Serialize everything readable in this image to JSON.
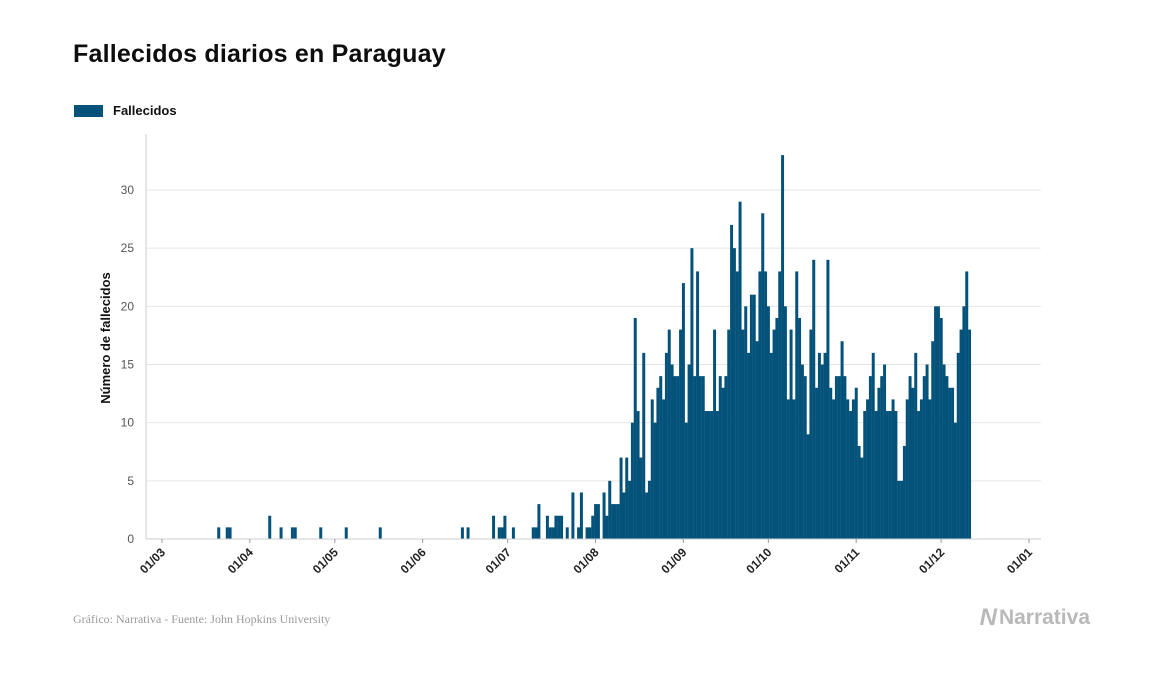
{
  "header": {
    "title": "Fallecidos diarios en Paraguay"
  },
  "footer": {
    "source": "Gráfico: Narrativa - Fuente: John Hopkins University",
    "brand": "Narrativa",
    "brand_mark": "N"
  },
  "colors": {
    "bar": "#04527a",
    "grid": "#e6e6e6",
    "axis": "#cccccc"
  },
  "chart_data": {
    "type": "bar",
    "title": "Fallecidos diarios en Paraguay",
    "ylabel": "Número de fallecidos",
    "xlabel": "",
    "ylim": [
      0,
      35
    ],
    "yticks": [
      0,
      5,
      10,
      15,
      20,
      25,
      30
    ],
    "xticks": [
      "01/03",
      "01/04",
      "01/05",
      "01/06",
      "01/07",
      "01/08",
      "01/09",
      "01/10",
      "01/11",
      "01/12",
      "01/01"
    ],
    "grid": true,
    "legend": "top-left",
    "series": [
      {
        "name": "Fallecidos",
        "start_date": "2020-03-07",
        "values": [
          0,
          0,
          0,
          0,
          0,
          0,
          0,
          0,
          0,
          0,
          0,
          0,
          0,
          0,
          1,
          0,
          0,
          1,
          1,
          0,
          0,
          0,
          0,
          0,
          0,
          0,
          0,
          0,
          0,
          0,
          0,
          0,
          2,
          0,
          0,
          0,
          1,
          0,
          0,
          0,
          1,
          1,
          0,
          0,
          0,
          0,
          0,
          0,
          0,
          0,
          1,
          0,
          0,
          0,
          0,
          0,
          0,
          0,
          0,
          1,
          0,
          0,
          0,
          0,
          0,
          0,
          0,
          0,
          0,
          0,
          0,
          1,
          0,
          0,
          0,
          0,
          0,
          0,
          0,
          0,
          0,
          0,
          0,
          0,
          0,
          0,
          0,
          0,
          0,
          0,
          0,
          0,
          0,
          0,
          0,
          0,
          0,
          0,
          0,
          0,
          1,
          0,
          1,
          0,
          0,
          0,
          0,
          0,
          0,
          0,
          0,
          2,
          0,
          1,
          1,
          2,
          0,
          0,
          1,
          0,
          0,
          0,
          0,
          0,
          0,
          1,
          1,
          3,
          0,
          0,
          2,
          1,
          1,
          2,
          2,
          2,
          0,
          1,
          0,
          4,
          0,
          1,
          4,
          0,
          1,
          1,
          2,
          3,
          3,
          0,
          4,
          2,
          5,
          3,
          3,
          3,
          7,
          4,
          7,
          5,
          10,
          19,
          11,
          7,
          16,
          4,
          5,
          12,
          10,
          13,
          14,
          12,
          16,
          18,
          15,
          14,
          14,
          18,
          22,
          10,
          15,
          25,
          14,
          23,
          14,
          14,
          11,
          11,
          11,
          18,
          11,
          14,
          13,
          14,
          18,
          27,
          25,
          23,
          29,
          18,
          20,
          16,
          21,
          21,
          17,
          23,
          28,
          23,
          20,
          16,
          18,
          19,
          23,
          33,
          20,
          12,
          18,
          12,
          23,
          19,
          15,
          14,
          9,
          18,
          24,
          13,
          16,
          15,
          16,
          24,
          13,
          12,
          14,
          14,
          17,
          14,
          12,
          11,
          12,
          13,
          8,
          7,
          11,
          12,
          14,
          16,
          11,
          13,
          14,
          15,
          11,
          11,
          12,
          11,
          5,
          5,
          8,
          12,
          14,
          13,
          16,
          11,
          12,
          14,
          15,
          12,
          17,
          20,
          20,
          19,
          15,
          14,
          13,
          13,
          10,
          16,
          18,
          20,
          23,
          18
        ]
      }
    ]
  }
}
